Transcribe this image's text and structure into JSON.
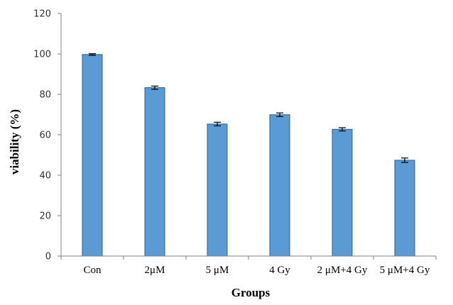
{
  "chart_data": {
    "type": "bar",
    "categories": [
      "Con",
      "2μM",
      "5 μM",
      "4 Gy",
      "2 μM+4 Gy",
      "5 μM+4 Gy"
    ],
    "values": [
      99.7,
      83.3,
      65.3,
      69.9,
      62.7,
      47.4
    ],
    "error": [
      0.4,
      0.8,
      0.9,
      0.9,
      0.8,
      1.1
    ],
    "title": "",
    "xlabel": "Groups",
    "ylabel": "viability (%)",
    "ylim": [
      0,
      120
    ],
    "yticks": [
      0,
      20,
      40,
      60,
      80,
      100,
      120
    ],
    "ytick_labels": [
      "0",
      "20",
      "40",
      "60",
      "80",
      "100",
      "120"
    ],
    "grid": false,
    "legend": "none",
    "colors": {
      "bar_fill": "#5b9bd5",
      "bar_stroke": "#2e5f8a",
      "axis": "#808080",
      "error_bar": "#000000"
    }
  }
}
